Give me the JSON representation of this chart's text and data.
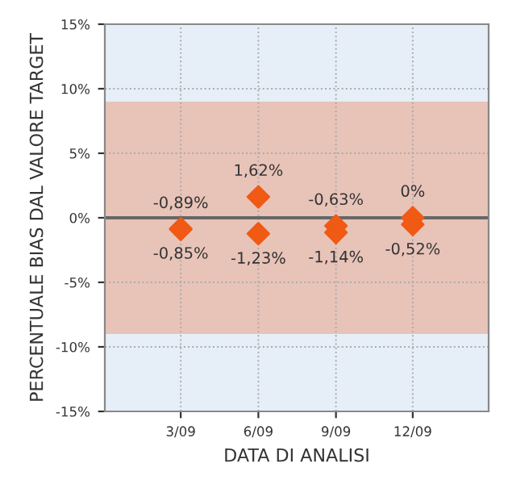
{
  "chart_data": {
    "type": "scatter",
    "xlabel": "DATA DI ANALISI",
    "ylabel": "PERCENTUALE BIAS DAL VALORE TARGET",
    "series": [
      {
        "color": "#f05a14",
        "x": [
          "2009-03",
          "2009-03",
          "2009-06",
          "2009-06",
          "2009-09",
          "2009-09",
          "2009-12",
          "2009-12"
        ],
        "values": [
          -0.89,
          -0.85,
          1.62,
          -1.23,
          -0.63,
          -1.14,
          0,
          -0.52
        ],
        "value_labels": [
          "-0,89%",
          "-0,85%",
          "1,62%",
          "-1,23%",
          "-0,63%",
          "-1,14%",
          "0%",
          "-0,52%"
        ]
      }
    ],
    "marker": "diamond",
    "xlim": [
      "2008-12",
      "2010-03"
    ],
    "xticks": [
      {
        "value": "2009-03",
        "label": "3/09"
      },
      {
        "value": "2009-06",
        "label": "6/09"
      },
      {
        "value": "2009-09",
        "label": "9/09"
      },
      {
        "value": "2009-12",
        "label": "12/09"
      }
    ],
    "ylim": [
      -15,
      15
    ],
    "yticks": [
      {
        "value": -15,
        "label": "-15%"
      },
      {
        "value": -10,
        "label": "-10%"
      },
      {
        "value": -5,
        "label": "-5%"
      },
      {
        "value": 0,
        "label": "0%"
      },
      {
        "value": 5,
        "label": "5%"
      },
      {
        "value": 10,
        "label": "10%"
      },
      {
        "value": 15,
        "label": "15%"
      }
    ],
    "bands": [
      {
        "axis": "y",
        "from": -9,
        "to": 9,
        "color": "#e8c3b8"
      }
    ],
    "ref_lines": [
      {
        "axis": "y",
        "value": 0,
        "color": "#666666"
      }
    ],
    "grid": true
  }
}
